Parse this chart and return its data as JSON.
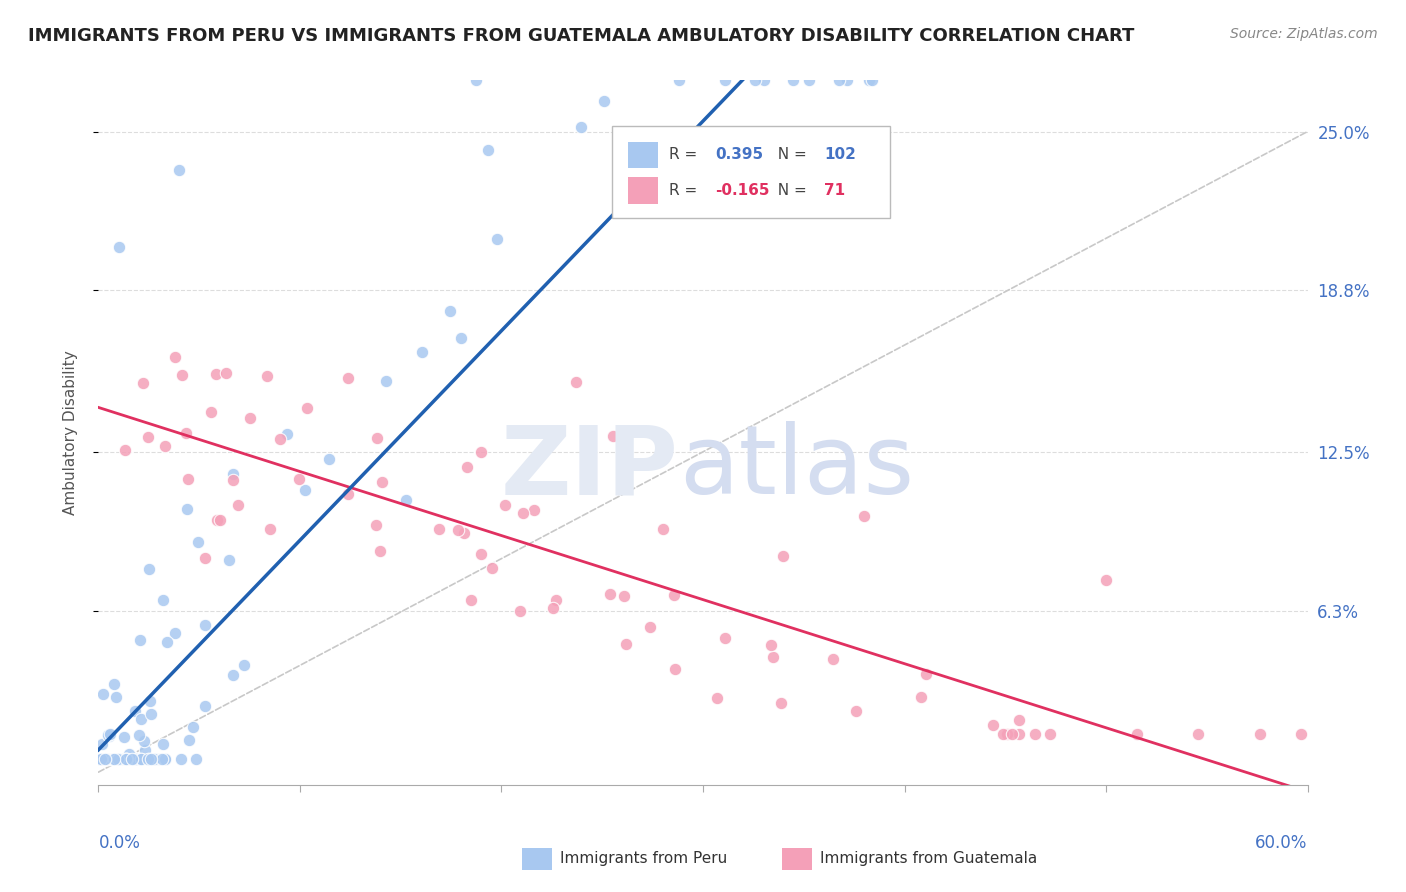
{
  "title": "IMMIGRANTS FROM PERU VS IMMIGRANTS FROM GUATEMALA AMBULATORY DISABILITY CORRELATION CHART",
  "source": "Source: ZipAtlas.com",
  "ylabel": "Ambulatory Disability",
  "xlim": [
    0.0,
    0.6
  ],
  "ylim": [
    -0.005,
    0.27
  ],
  "peru_color": "#A8C8F0",
  "guatemala_color": "#F4A0B8",
  "peru_line_color": "#2060B0",
  "guatemala_line_color": "#E03060",
  "ref_line_color": "#C8C8C8",
  "legend_r_peru": "0.395",
  "legend_n_peru": "102",
  "legend_r_guat": "-0.165",
  "legend_n_guat": "71",
  "ytick_vals": [
    0.063,
    0.125,
    0.188,
    0.25
  ],
  "ytick_labels": [
    "6.3%",
    "12.5%",
    "18.8%",
    "25.0%"
  ],
  "title_fontsize": 13,
  "source_fontsize": 10,
  "axis_label_color": "#4472C4",
  "dot_size": 80
}
